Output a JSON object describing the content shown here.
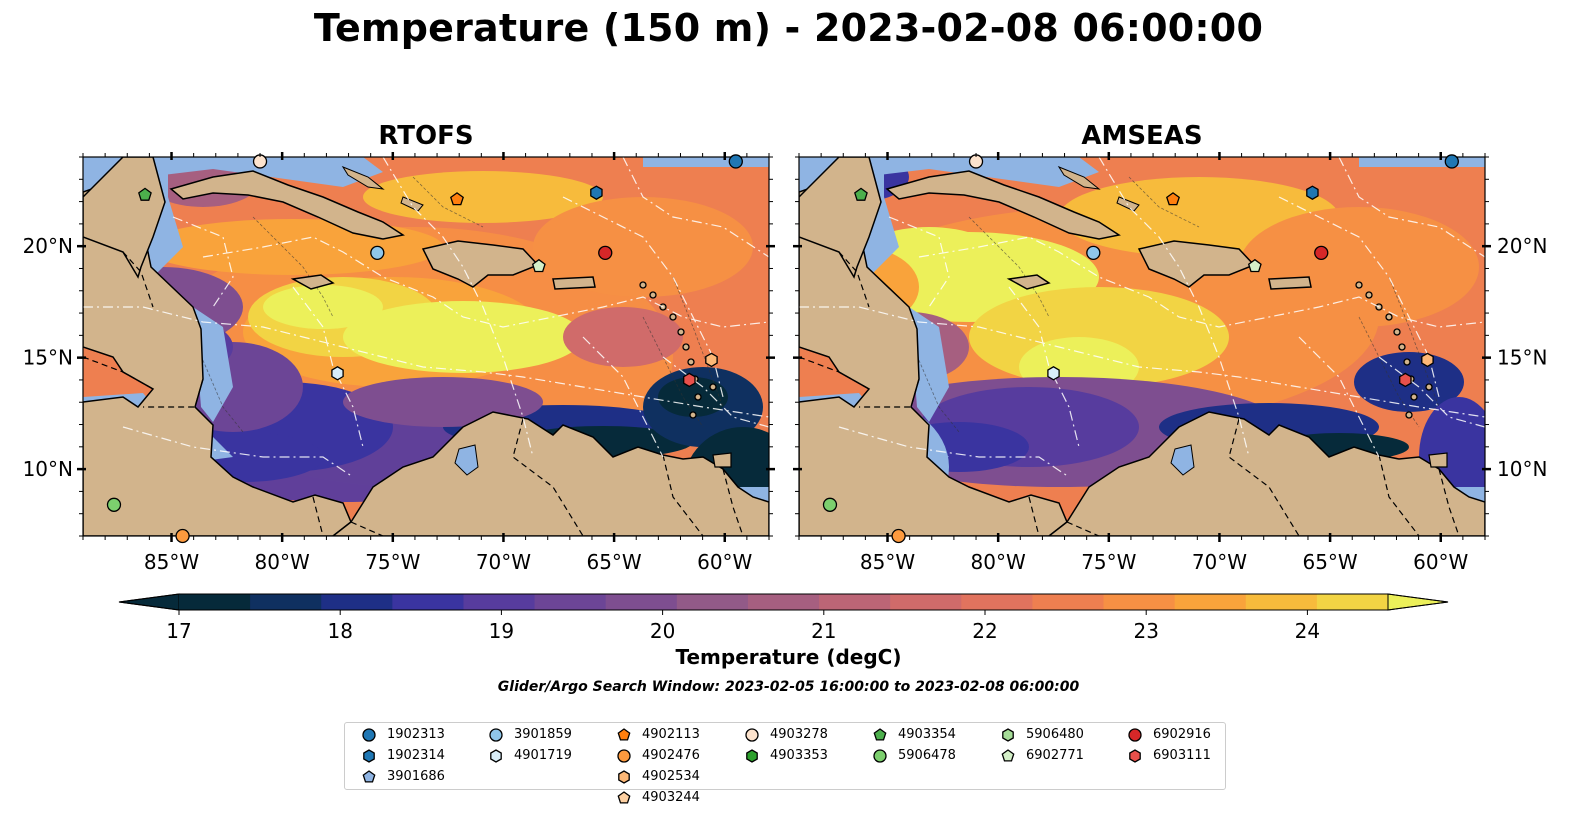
{
  "title": "Temperature (150 m) - 2023-02-08 06:00:00",
  "panels": [
    {
      "title": "RTOFS"
    },
    {
      "title": "AMSEAS"
    }
  ],
  "axes": {
    "x_ticks": [
      "85°W",
      "80°W",
      "75°W",
      "70°W",
      "65°W",
      "60°W"
    ],
    "y_ticks": [
      "20°N",
      "15°N",
      "10°N"
    ],
    "lon_range": [
      -89,
      -58
    ],
    "lat_range": [
      7,
      24
    ]
  },
  "colorbar": {
    "label": "Temperature (degC)",
    "ticks": [
      "17",
      "18",
      "19",
      "20",
      "21",
      "22",
      "23",
      "24"
    ],
    "range": [
      17,
      24.5
    ],
    "extend": "both",
    "colormap": [
      "#062a3a",
      "#0f3060",
      "#1e2f86",
      "#3a34a0",
      "#573c9e",
      "#6c4596",
      "#7e4e90",
      "#925a88",
      "#a65f80",
      "#bc6576",
      "#d06b6a",
      "#e1735e",
      "#ee7f50",
      "#f69044",
      "#f9a33b",
      "#f7bb3c",
      "#f2d444",
      "#ecf05a"
    ]
  },
  "search_window": "Glider/Argo Search Window: 2023-02-05 16:00:00 to 2023-02-08 06:00:00",
  "legend": {
    "columns": [
      [
        {
          "id": "1902313",
          "marker": "circle",
          "color": "#1f77b4"
        },
        {
          "id": "1902314",
          "marker": "hexagon",
          "color": "#1f77b4"
        },
        {
          "id": "3901686",
          "marker": "pentagon",
          "color": "#8fb4e3"
        }
      ],
      [
        {
          "id": "3901859",
          "marker": "circle",
          "color": "#8fc6ea"
        },
        {
          "id": "4901719",
          "marker": "hexagon",
          "color": "#d9eef9"
        }
      ],
      [
        {
          "id": "4902113",
          "marker": "pentagon",
          "color": "#ff7f0e"
        },
        {
          "id": "4902476",
          "marker": "circle",
          "color": "#fd9a3e"
        },
        {
          "id": "4902534",
          "marker": "hexagon",
          "color": "#fdb877"
        },
        {
          "id": "4903244",
          "marker": "pentagon",
          "color": "#fdd0a2"
        }
      ],
      [
        {
          "id": "4903278",
          "marker": "circle",
          "color": "#fde3cd"
        },
        {
          "id": "4903353",
          "marker": "hexagon",
          "color": "#2ca02c"
        }
      ],
      [
        {
          "id": "4903354",
          "marker": "pentagon",
          "color": "#4caf4c"
        },
        {
          "id": "5906478",
          "marker": "circle",
          "color": "#7ccf6e"
        }
      ],
      [
        {
          "id": "5906480",
          "marker": "hexagon",
          "color": "#a6dd98"
        },
        {
          "id": "6902771",
          "marker": "pentagon",
          "color": "#d4f0c8"
        }
      ],
      [
        {
          "id": "6902916",
          "marker": "circle",
          "color": "#d62728"
        },
        {
          "id": "6903111",
          "marker": "hexagon",
          "color": "#e8504b"
        }
      ]
    ]
  },
  "floats": [
    {
      "id": "1902313",
      "lon": -59.5,
      "lat": 23.8
    },
    {
      "id": "1902314",
      "lon": -65.8,
      "lat": 22.4
    },
    {
      "id": "3901859",
      "lon": -75.7,
      "lat": 19.7
    },
    {
      "id": "4901719",
      "lon": -77.5,
      "lat": 14.3
    },
    {
      "id": "4902113",
      "lon": -72.1,
      "lat": 22.1
    },
    {
      "id": "4902476",
      "lon": -84.5,
      "lat": 7.0
    },
    {
      "id": "4902534",
      "lon": -60.6,
      "lat": 14.9
    },
    {
      "id": "4903278",
      "lon": -81.0,
      "lat": 23.8
    },
    {
      "id": "4903354",
      "lon": -86.2,
      "lat": 22.3
    },
    {
      "id": "5906478",
      "lon": -87.6,
      "lat": 8.4
    },
    {
      "id": "6902771",
      "lon": -68.4,
      "lat": 19.1
    },
    {
      "id": "6902916",
      "lon": -65.4,
      "lat": 19.7
    },
    {
      "id": "6903111",
      "lon": -61.6,
      "lat": 14.0
    }
  ]
}
